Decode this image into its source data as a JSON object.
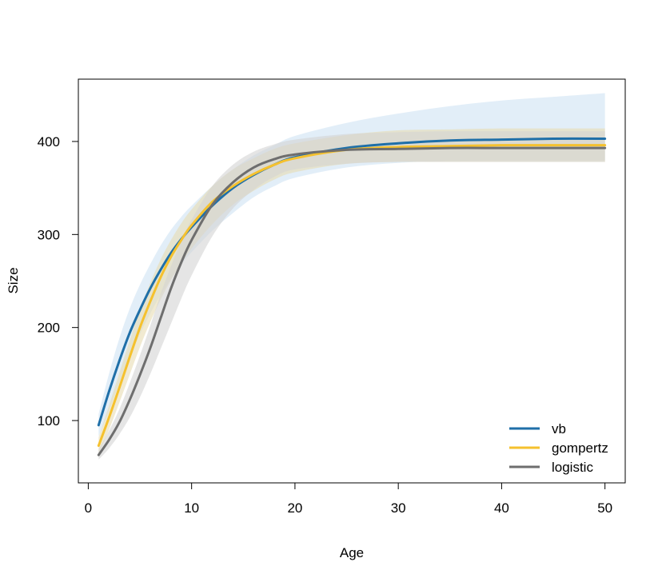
{
  "chart_data": {
    "type": "line",
    "title": "",
    "xlabel": "Age",
    "ylabel": "Size",
    "xlim": [
      -0.96,
      51.96
    ],
    "ylim": [
      33,
      467
    ],
    "xticks": [
      0,
      10,
      20,
      30,
      40,
      50
    ],
    "yticks": [
      100,
      200,
      300,
      400
    ],
    "x_tick_labels": [
      "0",
      "10",
      "20",
      "30",
      "40",
      "50"
    ],
    "y_tick_labels": [
      "100",
      "200",
      "300",
      "400"
    ],
    "grid": false,
    "legend_position": "bottom-right",
    "x": [
      1,
      2,
      3,
      4,
      5,
      6,
      7,
      8,
      9,
      10,
      12,
      14,
      16,
      18,
      20,
      25,
      30,
      35,
      40,
      45,
      50
    ],
    "series": [
      {
        "name": "vb",
        "color": "#1f6fa8",
        "band_color": "#cfe2f3",
        "values": [
          95,
          131,
          164,
          194,
          219,
          242,
          262,
          280,
          295,
          308,
          331,
          350,
          364,
          375,
          383,
          393,
          398,
          401,
          402,
          403,
          403
        ],
        "lower": [
          83,
          110,
          140,
          168,
          193,
          215,
          235,
          252,
          268,
          281,
          304,
          323,
          340,
          352,
          361,
          372,
          377,
          379,
          380,
          380,
          380
        ],
        "upper": [
          107,
          150,
          188,
          220,
          246,
          268,
          288,
          305,
          319,
          331,
          352,
          370,
          385,
          396,
          406,
          420,
          430,
          438,
          444,
          448,
          452
        ]
      },
      {
        "name": "gompertz",
        "color": "#f5c12e",
        "band_color": "#e7dcb2",
        "values": [
          73,
          103,
          135,
          168,
          200,
          228,
          254,
          276,
          294,
          310,
          335,
          352,
          365,
          375,
          382,
          391,
          394,
          395,
          396,
          396,
          396
        ],
        "lower": [
          64,
          90,
          119,
          149,
          179,
          206,
          230,
          251,
          269,
          285,
          311,
          332,
          347,
          359,
          367,
          376,
          378,
          378,
          378,
          378,
          378
        ],
        "upper": [
          82,
          116,
          151,
          186,
          219,
          248,
          273,
          294,
          312,
          327,
          352,
          370,
          382,
          392,
          398,
          407,
          412,
          413,
          414,
          414,
          414
        ]
      },
      {
        "name": "logistic",
        "color": "#6e6e6e",
        "band_color": "#d4d4d4",
        "values": [
          63,
          79,
          98,
          122,
          149,
          178,
          210,
          242,
          270,
          294,
          332,
          356,
          372,
          381,
          386,
          391,
          392,
          393,
          393,
          393,
          393
        ],
        "lower": [
          58,
          70,
          85,
          103,
          125,
          150,
          177,
          204,
          231,
          256,
          298,
          328,
          348,
          362,
          370,
          376,
          378,
          378,
          378,
          378,
          378
        ],
        "upper": [
          69,
          89,
          112,
          140,
          170,
          202,
          236,
          266,
          293,
          316,
          352,
          375,
          389,
          397,
          402,
          408,
          410,
          411,
          411,
          411,
          411
        ]
      }
    ]
  }
}
